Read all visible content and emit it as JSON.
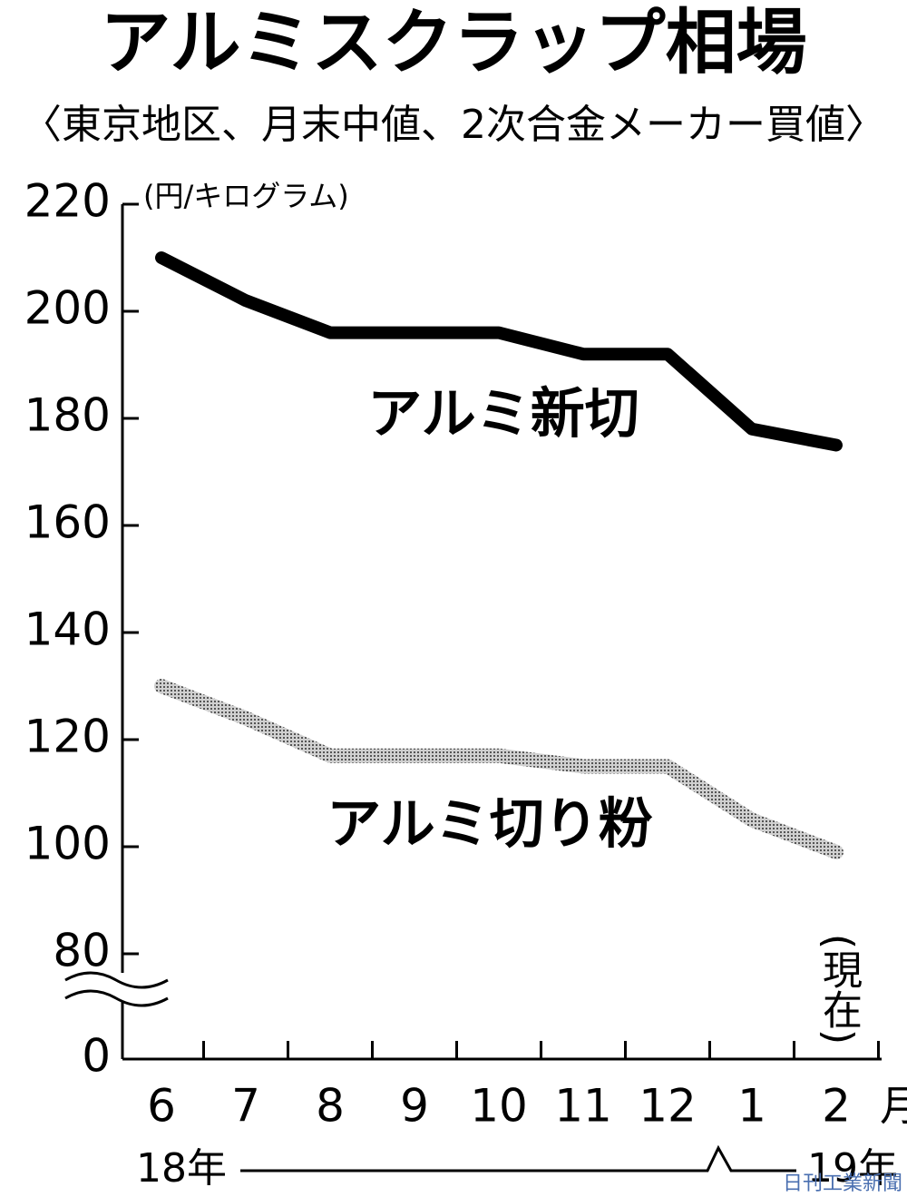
{
  "chart_data": {
    "type": "line",
    "title": "アルミスクラップ相場",
    "subtitle": "〈東京地区、月末中値、2次合金メーカー買値〉",
    "y_label": "(円/キログラム)",
    "x_unit": "月",
    "years": [
      "18年",
      "19年"
    ],
    "annotation": "(現在)",
    "source": "日刊工業新聞",
    "categories": [
      "6",
      "7",
      "8",
      "9",
      "10",
      "11",
      "12",
      "1",
      "2"
    ],
    "series": [
      {
        "name": "アルミ新切",
        "color": "#000000",
        "values": [
          210,
          202,
          196,
          196,
          196,
          192,
          192,
          178,
          175
        ]
      },
      {
        "name": "アルミ切り粉",
        "color": "#a8a8a8",
        "values": [
          130,
          124,
          117,
          117,
          117,
          115,
          115,
          105,
          99
        ]
      }
    ],
    "ylim": [
      0,
      220
    ],
    "axis_break": [
      0,
      80
    ],
    "yticks": [
      0,
      80,
      100,
      120,
      140,
      160,
      180,
      200,
      220
    ]
  }
}
